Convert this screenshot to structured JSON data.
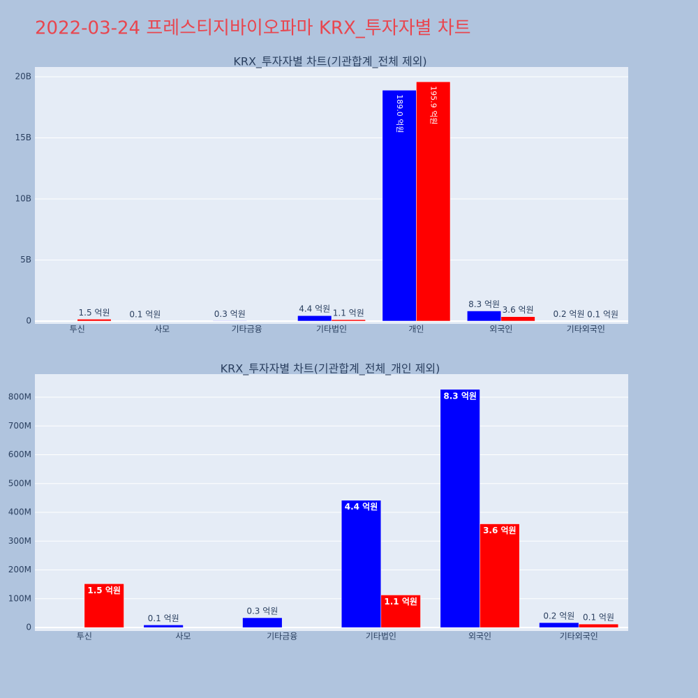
{
  "title": "2022-03-24 프레스티지바이오파마 KRX_투자자별 차트",
  "chart_data": [
    {
      "type": "bar",
      "title": "KRX_투자자별 차트(기관합계_전체 제외)",
      "categories": [
        "투신",
        "사모",
        "기타금융",
        "기타법인",
        "개인",
        "외국인",
        "기타외국인"
      ],
      "series": [
        {
          "color": "#0000ff",
          "values": [
            null,
            9000000,
            34000000,
            442000000,
            18900000000,
            827000000,
            17000000
          ],
          "value_labels": [
            null,
            "0.1 억원",
            "0.3 억원",
            "4.4 억원",
            "189.0 억원",
            "8.3 억원",
            "0.2 억원"
          ]
        },
        {
          "color": "#ff0000",
          "values": [
            152000000,
            null,
            null,
            113000000,
            19590000000,
            360000000,
            12000000
          ],
          "value_labels": [
            "1.5 억원",
            null,
            null,
            "1.1 억원",
            "195.9 억원",
            "3.6 억원",
            "0.1 억원"
          ]
        }
      ],
      "ylim": [
        -230000000,
        20800000000
      ],
      "yticks": [
        0,
        {
          "value": 5000000000,
          "label": "5B"
        },
        {
          "value": 10000000000,
          "label": "10B"
        },
        {
          "value": 15000000000,
          "label": "15B"
        },
        {
          "value": 20000000000,
          "label": "20B"
        }
      ],
      "grid": true
    },
    {
      "type": "bar",
      "title": "KRX_투자자별 차트(기관합계_전체_개인 제외)",
      "categories": [
        "투신",
        "사모",
        "기타금융",
        "기타법인",
        "외국인",
        "기타외국인"
      ],
      "series": [
        {
          "color": "#0000ff",
          "values": [
            null,
            9000000,
            34000000,
            442000000,
            827000000,
            17000000
          ],
          "value_labels": [
            null,
            "0.1 억원",
            "0.3 억원",
            "4.4 억원",
            "8.3 억원",
            "0.2 억원"
          ]
        },
        {
          "color": "#ff0000",
          "values": [
            152000000,
            null,
            null,
            113000000,
            360000000,
            12000000
          ],
          "value_labels": [
            "1.5 억원",
            null,
            null,
            "1.1 억원",
            "3.6 억원",
            "0.1 억원"
          ]
        }
      ],
      "ylim": [
        -12000000,
        880000000
      ],
      "yticks": [
        0,
        {
          "value": 100000000,
          "label": "100M"
        },
        {
          "value": 200000000,
          "label": "200M"
        },
        {
          "value": 300000000,
          "label": "300M"
        },
        {
          "value": 400000000,
          "label": "400M"
        },
        {
          "value": 500000000,
          "label": "500M"
        },
        {
          "value": 600000000,
          "label": "600M"
        },
        {
          "value": 700000000,
          "label": "700M"
        },
        {
          "value": 800000000,
          "label": "800M"
        }
      ],
      "grid": true
    }
  ]
}
